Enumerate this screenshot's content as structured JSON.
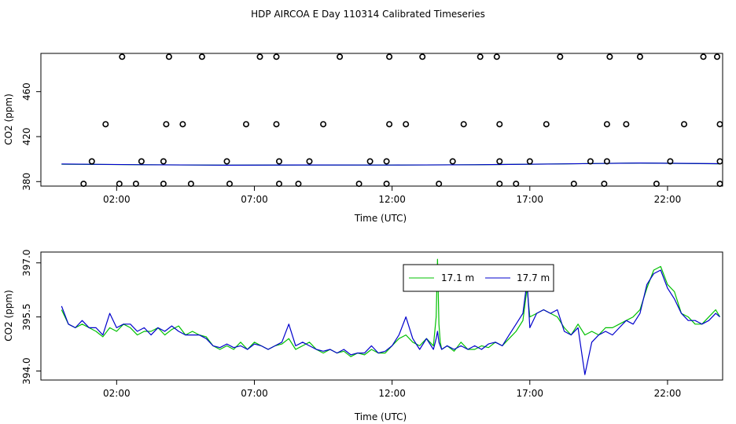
{
  "title": "HDP AIRCOA E  Day 110314  Calibrated Timeseries",
  "chart_data": [
    {
      "type": "scatter",
      "xlabel": "Time (UTC)",
      "ylabel": "CO2 (ppm)",
      "x_ticks": [
        "02:00",
        "07:00",
        "12:00",
        "17:00",
        "22:00"
      ],
      "x_tick_hours": [
        2,
        7,
        12,
        17,
        22
      ],
      "y_ticks": [
        "380",
        "420",
        "460"
      ],
      "y_tick_values": [
        380,
        420,
        460
      ],
      "xlim": [
        -0.75,
        24.0
      ],
      "ylim": [
        376,
        494
      ],
      "grid": false,
      "markers": {
        "hours": [
          0.8,
          2.1,
          2.7,
          3.7,
          4.7,
          6.1,
          7.9,
          8.6,
          10.8,
          11.8,
          13.7,
          15.9,
          16.5,
          18.6,
          19.7,
          21.6,
          23.9,
          1.1,
          2.9,
          3.7,
          6.0,
          7.9,
          9.0,
          11.2,
          11.8,
          14.2,
          15.9,
          17.0,
          19.2,
          19.8,
          22.1,
          23.9,
          1.6,
          3.8,
          4.4,
          6.7,
          7.8,
          9.5,
          11.9,
          12.5,
          14.6,
          15.9,
          17.6,
          19.8,
          20.5,
          22.6,
          23.9,
          2.2,
          3.9,
          5.1,
          7.2,
          7.8,
          10.1,
          11.9,
          13.1,
          15.2,
          15.8,
          18.1,
          19.9,
          21.0,
          23.3,
          23.8
        ],
        "values": [
          378,
          378,
          378,
          378,
          378,
          378,
          378,
          378,
          378,
          378,
          378,
          378,
          378,
          378,
          378,
          378,
          378,
          398,
          398,
          398,
          398,
          398,
          398,
          398,
          398,
          398,
          398,
          398,
          398,
          398,
          398,
          398,
          431,
          431,
          431,
          431,
          431,
          431,
          431,
          431,
          431,
          431,
          431,
          431,
          431,
          431,
          431,
          491,
          491,
          491,
          491,
          491,
          491,
          491,
          491,
          491,
          491,
          491,
          491,
          491,
          491,
          491
        ]
      },
      "series": [
        {
          "color": "#00c000",
          "hours": [
            0,
            3,
            6,
            9,
            12,
            15,
            18,
            21,
            23.9
          ],
          "values": [
            395.5,
            395.0,
            394.6,
            394.8,
            394.7,
            395.0,
            395.7,
            396.5,
            395.8
          ]
        },
        {
          "color": "#0000cc",
          "hours": [
            0,
            3,
            6,
            9,
            12,
            15,
            18,
            21,
            23.9
          ],
          "values": [
            395.6,
            395.0,
            394.6,
            394.8,
            394.7,
            395.0,
            395.7,
            396.5,
            395.9
          ]
        }
      ]
    },
    {
      "type": "line",
      "xlabel": "Time (UTC)",
      "ylabel": "CO2 (ppm)",
      "x_ticks": [
        "02:00",
        "07:00",
        "12:00",
        "17:00",
        "22:00"
      ],
      "x_tick_hours": [
        2,
        7,
        12,
        17,
        22
      ],
      "y_ticks": [
        "394.0",
        "395.5",
        "397.0"
      ],
      "y_tick_values": [
        394.0,
        395.5,
        397.0
      ],
      "xlim": [
        -0.75,
        24.0
      ],
      "ylim": [
        393.75,
        397.3
      ],
      "grid": false,
      "legend": {
        "position": "top-right"
      },
      "series": [
        {
          "name": "17.1 m",
          "color": "#00c000",
          "hours": [
            0.0,
            0.25,
            0.5,
            0.75,
            1.0,
            1.25,
            1.5,
            1.75,
            2.0,
            2.25,
            2.5,
            2.75,
            3.0,
            3.25,
            3.5,
            3.75,
            4.0,
            4.25,
            4.5,
            4.75,
            5.0,
            5.25,
            5.5,
            5.75,
            6.0,
            6.25,
            6.5,
            6.75,
            7.0,
            7.25,
            7.5,
            7.75,
            8.0,
            8.25,
            8.5,
            8.75,
            9.0,
            9.25,
            9.5,
            9.75,
            10.0,
            10.25,
            10.5,
            10.75,
            11.0,
            11.25,
            11.5,
            11.75,
            12.0,
            12.25,
            12.5,
            12.75,
            13.0,
            13.25,
            13.5,
            13.6,
            13.65,
            13.7,
            13.75,
            13.8,
            14.0,
            14.25,
            14.5,
            14.75,
            15.0,
            15.25,
            15.5,
            15.75,
            16.0,
            16.25,
            16.5,
            16.75,
            16.9,
            17.0,
            17.25,
            17.5,
            17.75,
            18.0,
            18.25,
            18.5,
            18.75,
            19.0,
            19.25,
            19.5,
            19.75,
            20.0,
            20.25,
            20.5,
            20.75,
            21.0,
            21.25,
            21.5,
            21.75,
            22.0,
            22.25,
            22.5,
            22.75,
            23.0,
            23.25,
            23.5,
            23.75,
            23.9
          ],
          "values": [
            395.7,
            395.3,
            395.2,
            395.3,
            395.2,
            395.1,
            394.95,
            395.2,
            395.1,
            395.3,
            395.2,
            395.0,
            395.1,
            395.1,
            395.2,
            395.0,
            395.15,
            395.25,
            395.0,
            395.1,
            395.0,
            394.95,
            394.7,
            394.6,
            394.7,
            394.6,
            394.8,
            394.6,
            394.8,
            394.7,
            394.6,
            394.7,
            394.75,
            394.9,
            394.6,
            394.7,
            394.8,
            394.6,
            394.5,
            394.6,
            394.5,
            394.55,
            394.4,
            394.5,
            394.45,
            394.6,
            394.5,
            394.5,
            394.7,
            394.9,
            395.0,
            394.8,
            394.7,
            394.9,
            394.7,
            395.5,
            397.1,
            395.3,
            394.8,
            394.6,
            394.7,
            394.55,
            394.8,
            394.6,
            394.6,
            394.7,
            394.65,
            394.8,
            394.7,
            394.9,
            395.1,
            395.4,
            396.3,
            395.5,
            395.6,
            395.7,
            395.6,
            395.5,
            395.2,
            395.0,
            395.3,
            395.0,
            395.1,
            395.0,
            395.2,
            395.2,
            395.3,
            395.4,
            395.5,
            395.7,
            396.3,
            396.8,
            396.9,
            396.4,
            396.2,
            395.6,
            395.5,
            395.3,
            395.3,
            395.5,
            395.7,
            395.5
          ]
        },
        {
          "name": "17.7 m",
          "color": "#0000cc",
          "hours": [
            0.0,
            0.25,
            0.5,
            0.75,
            1.0,
            1.25,
            1.5,
            1.75,
            2.0,
            2.25,
            2.5,
            2.75,
            3.0,
            3.25,
            3.5,
            3.75,
            4.0,
            4.25,
            4.5,
            4.75,
            5.0,
            5.25,
            5.5,
            5.75,
            6.0,
            6.25,
            6.5,
            6.75,
            7.0,
            7.25,
            7.5,
            7.75,
            8.0,
            8.25,
            8.5,
            8.75,
            9.0,
            9.25,
            9.5,
            9.75,
            10.0,
            10.25,
            10.5,
            10.75,
            11.0,
            11.25,
            11.5,
            11.75,
            12.0,
            12.25,
            12.5,
            12.75,
            13.0,
            13.25,
            13.5,
            13.6,
            13.65,
            13.7,
            13.75,
            13.8,
            14.0,
            14.25,
            14.5,
            14.75,
            15.0,
            15.25,
            15.5,
            15.75,
            16.0,
            16.25,
            16.5,
            16.75,
            16.9,
            17.0,
            17.25,
            17.5,
            17.75,
            18.0,
            18.25,
            18.5,
            18.75,
            19.0,
            19.25,
            19.5,
            19.75,
            20.0,
            20.25,
            20.5,
            20.75,
            21.0,
            21.25,
            21.5,
            21.75,
            22.0,
            22.25,
            22.5,
            22.75,
            23.0,
            23.25,
            23.5,
            23.75,
            23.9
          ],
          "values": [
            395.8,
            395.3,
            395.2,
            395.4,
            395.2,
            395.2,
            395.0,
            395.6,
            395.2,
            395.3,
            395.3,
            395.1,
            395.2,
            395.0,
            395.2,
            395.1,
            395.25,
            395.1,
            395.0,
            395.0,
            395.0,
            394.9,
            394.7,
            394.65,
            394.75,
            394.65,
            394.7,
            394.6,
            394.75,
            394.7,
            394.6,
            394.7,
            394.8,
            395.3,
            394.7,
            394.8,
            394.7,
            394.6,
            394.55,
            394.6,
            394.5,
            394.6,
            394.45,
            394.5,
            394.5,
            394.7,
            394.5,
            394.55,
            394.7,
            395.0,
            395.5,
            394.9,
            394.6,
            394.9,
            394.6,
            394.9,
            395.1,
            394.8,
            394.7,
            394.6,
            394.7,
            394.6,
            394.7,
            394.6,
            394.7,
            394.6,
            394.75,
            394.8,
            394.7,
            395.0,
            395.3,
            395.6,
            396.5,
            395.2,
            395.6,
            395.7,
            395.6,
            395.7,
            395.1,
            395.0,
            395.2,
            393.9,
            394.8,
            395.0,
            395.1,
            395.0,
            395.2,
            395.4,
            395.3,
            395.6,
            396.4,
            396.7,
            396.8,
            396.3,
            396.0,
            395.6,
            395.4,
            395.4,
            395.3,
            395.4,
            395.6,
            395.5
          ]
        }
      ]
    }
  ]
}
